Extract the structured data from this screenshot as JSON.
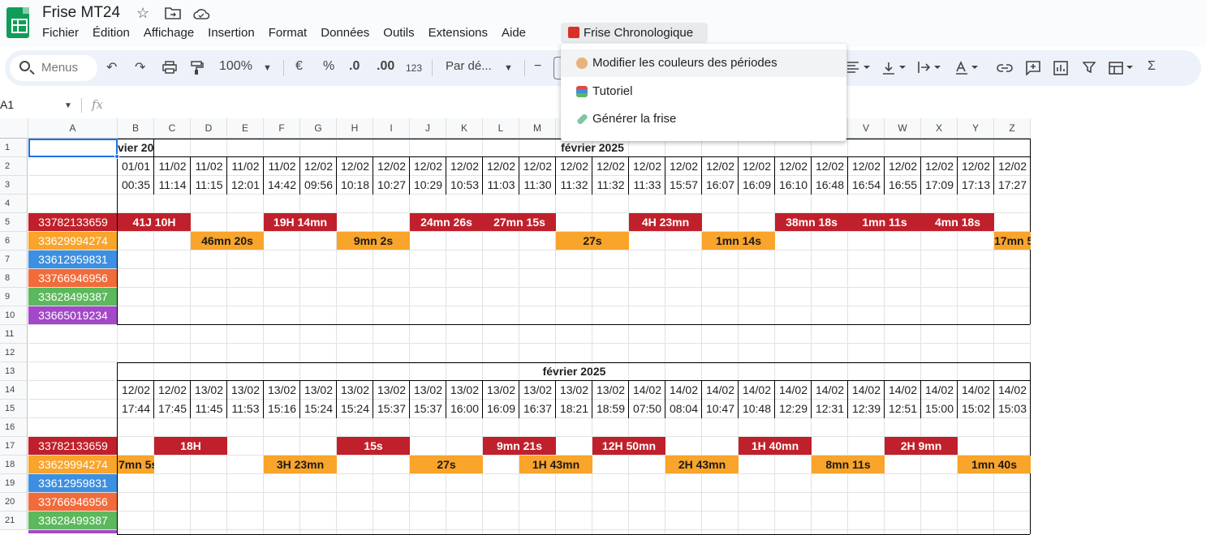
{
  "app": {
    "doc_title": "Frise MT24",
    "menu": [
      "Fichier",
      "Édition",
      "Affichage",
      "Insertion",
      "Format",
      "Données",
      "Outils",
      "Extensions",
      "Aide"
    ],
    "custom_menu": "Frise Chronologique"
  },
  "toolbar": {
    "search_label": "Menus",
    "zoom": "100%",
    "currency": "€",
    "percent": "%",
    "decrease_decimals": ".0",
    "increase_decimals": ".00",
    "number_format": "123",
    "font": "Par dé...",
    "minus": "−"
  },
  "formula": {
    "cell_ref": "A1",
    "fx": "fx"
  },
  "dropdown": {
    "items": [
      {
        "label": "Modifier les couleurs des périodes",
        "icon": "palette-icon"
      },
      {
        "label": "Tutoriel",
        "icon": "books-icon"
      },
      {
        "label": "Générer la frise",
        "icon": "test-tube-icon"
      }
    ]
  },
  "columns": [
    "A",
    "B",
    "C",
    "D",
    "E",
    "F",
    "G",
    "H",
    "I",
    "J",
    "K",
    "L",
    "M",
    "N",
    "O",
    "P",
    "Q",
    "R",
    "S",
    "T",
    "U",
    "V",
    "W",
    "X",
    "Y",
    "Z"
  ],
  "rows": [
    "1",
    "2",
    "3",
    "4",
    "5",
    "6",
    "7",
    "8",
    "9",
    "10",
    "11",
    "12",
    "13",
    "14",
    "15",
    "16",
    "17",
    "18",
    "19",
    "20",
    "21"
  ],
  "phones": [
    "33782133659",
    "33629994274",
    "33612959831",
    "33766946956",
    "33628499387",
    "33665019234"
  ],
  "phone_colors": [
    "#c0202b",
    "#f9a42a",
    "#3d8fe0",
    "#f26b3a",
    "#5cb85c",
    "#a348c8"
  ],
  "block1": {
    "month_left": "vier 20",
    "month": "février 2025",
    "dates": [
      "01/01",
      "11/02",
      "11/02",
      "11/02",
      "11/02",
      "12/02",
      "12/02",
      "12/02",
      "12/02",
      "12/02",
      "12/02",
      "12/02",
      "12/02",
      "12/02",
      "12/02",
      "12/02",
      "12/02",
      "12/02",
      "12/02",
      "12/02",
      "12/02",
      "12/02",
      "12/02",
      "12/02",
      "12/02"
    ],
    "times": [
      "00:35",
      "11:14",
      "11:15",
      "12:01",
      "14:42",
      "09:56",
      "10:18",
      "10:27",
      "10:29",
      "10:53",
      "11:03",
      "11:30",
      "11:32",
      "11:32",
      "11:33",
      "15:57",
      "16:07",
      "16:09",
      "16:10",
      "16:48",
      "16:54",
      "16:55",
      "17:09",
      "17:13",
      "17:27"
    ],
    "red_bars": [
      "41J 10H",
      "19H 14mn",
      "24mn 26s",
      "27mn 15s",
      "4H 23mn",
      "38mn 18s",
      "1mn 11s",
      "4mn 18s"
    ],
    "orange_bars": [
      "46mn 20s",
      "9mn 2s",
      "27s",
      "1mn 14s",
      "17mn 5"
    ]
  },
  "block2": {
    "month": "février 2025",
    "dates": [
      "12/02",
      "12/02",
      "13/02",
      "13/02",
      "13/02",
      "13/02",
      "13/02",
      "13/02",
      "13/02",
      "13/02",
      "13/02",
      "13/02",
      "13/02",
      "13/02",
      "14/02",
      "14/02",
      "14/02",
      "14/02",
      "14/02",
      "14/02",
      "14/02",
      "14/02",
      "14/02",
      "14/02",
      "14/02"
    ],
    "times": [
      "17:44",
      "17:45",
      "11:45",
      "11:53",
      "15:16",
      "15:24",
      "15:24",
      "15:37",
      "15:37",
      "16:00",
      "16:09",
      "16:37",
      "18:21",
      "18:59",
      "07:50",
      "08:04",
      "10:47",
      "10:48",
      "12:29",
      "12:31",
      "12:39",
      "12:51",
      "15:00",
      "15:02",
      "15:03"
    ],
    "red_bars": [
      "18H",
      "15s",
      "9mn 21s",
      "12H 50mn",
      "1H 40mn",
      "2H 9mn"
    ],
    "orange_bars": [
      "7mn 5s",
      "3H 23mn",
      "27s",
      "1H 43mn",
      "2H 43mn",
      "8mn 11s",
      "1mn 40s"
    ]
  }
}
